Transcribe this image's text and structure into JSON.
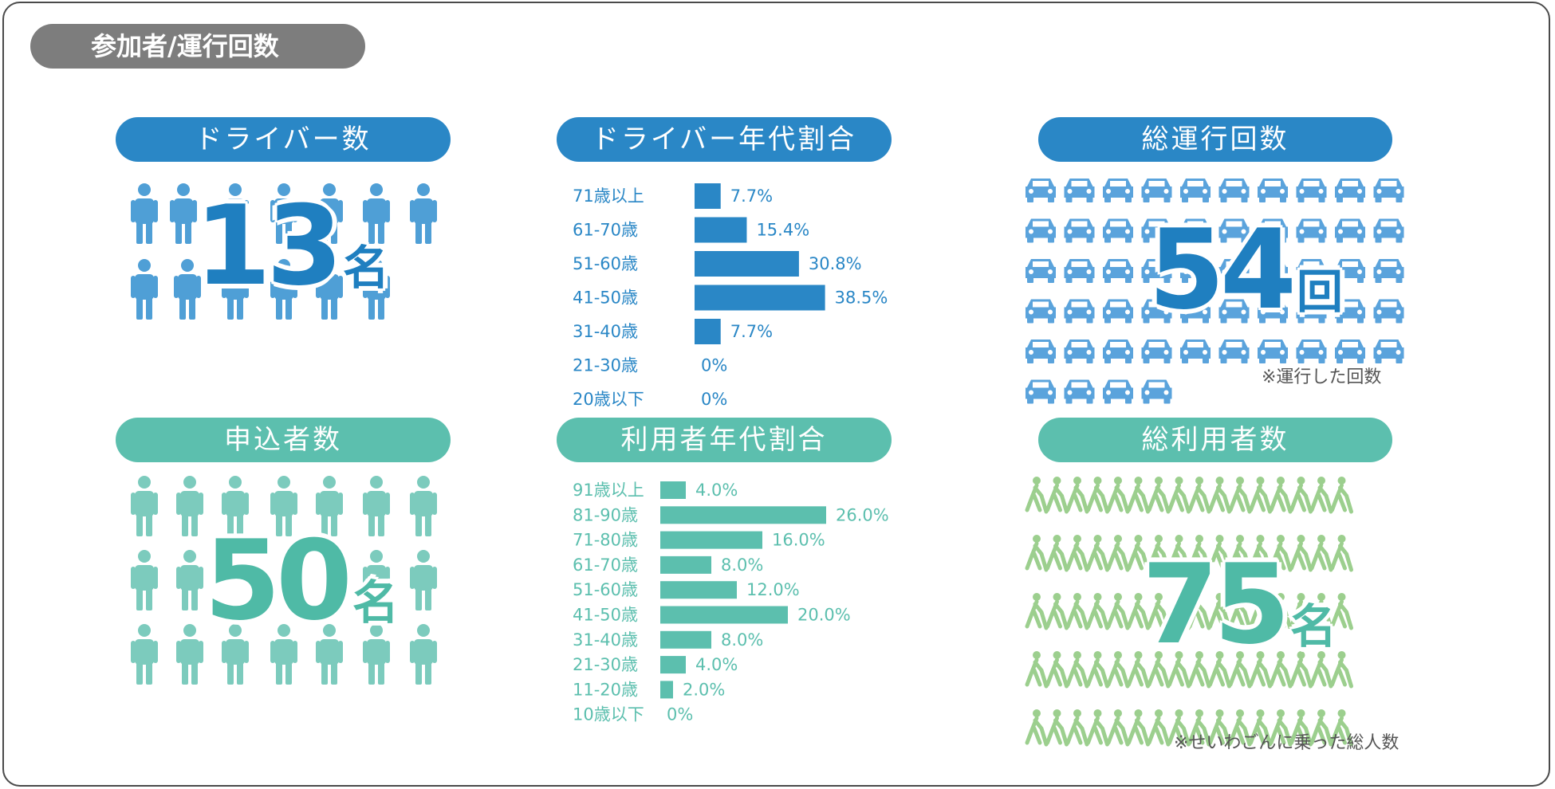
{
  "section_title": "参加者/運行回数",
  "drivers": {
    "title": "ドライバー数",
    "number": "13",
    "unit": "名",
    "icon": "person-icon",
    "color": "#4f9fd6"
  },
  "driver_age": {
    "title": "ドライバー年代割合",
    "color": "#2a87c6"
  },
  "total_runs": {
    "title": "総運行回数",
    "number": "54",
    "unit": "回",
    "note": "※運行した回数",
    "icon": "car-icon",
    "color": "#5aa3dc"
  },
  "applicants": {
    "title": "申込者数",
    "number": "50",
    "unit": "名",
    "icon": "person-icon",
    "color": "#7ccbbd"
  },
  "user_age": {
    "title": "利用者年代割合",
    "color": "#5cbfae"
  },
  "total_users": {
    "title": "総利用者数",
    "number": "75",
    "unit": "名",
    "note": "※せいわごんに乗った総人数",
    "icon": "pedestrian-icon",
    "color": "#9ccf8e"
  },
  "chart_data": [
    {
      "type": "bar",
      "orientation": "horizontal",
      "title": "ドライバー年代割合",
      "categories": [
        "71歳以上",
        "61-70歳",
        "51-60歳",
        "41-50歳",
        "31-40歳",
        "21-30歳",
        "20歳以下"
      ],
      "values": [
        7.7,
        15.4,
        30.8,
        38.5,
        7.7,
        0,
        0
      ],
      "labels": [
        "7.7%",
        "15.4%",
        "30.8%",
        "38.5%",
        "7.7%",
        "0%",
        "0%"
      ],
      "xlim": [
        0,
        40
      ]
    },
    {
      "type": "bar",
      "orientation": "horizontal",
      "title": "利用者年代割合",
      "categories": [
        "91歳以上",
        "81-90歳",
        "71-80歳",
        "61-70歳",
        "51-60歳",
        "41-50歳",
        "31-40歳",
        "21-30歳",
        "11-20歳",
        "10歳以下"
      ],
      "values": [
        4.0,
        26.0,
        16.0,
        8.0,
        12.0,
        20.0,
        8.0,
        4.0,
        2.0,
        0
      ],
      "labels": [
        "4.0%",
        "26.0%",
        "16.0%",
        "8.0%",
        "12.0%",
        "20.0%",
        "8.0%",
        "4.0%",
        "2.0%",
        "0%"
      ],
      "xlim": [
        0,
        26
      ]
    }
  ]
}
